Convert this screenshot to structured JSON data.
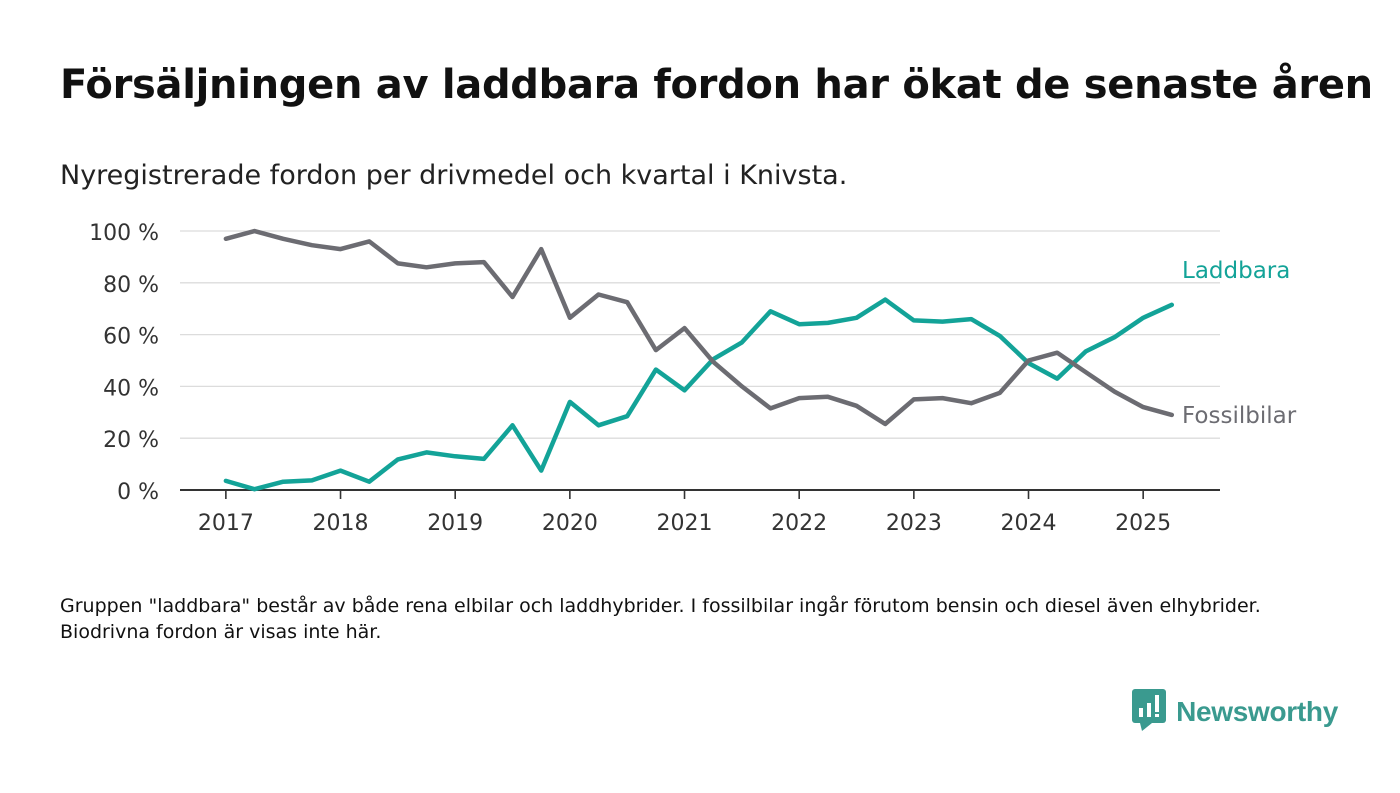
{
  "title": "Försäljningen av laddbara fordon har ökat de senaste åren",
  "subtitle": "Nyregistrerade fordon per drivmedel och kvartal i Knivsta.",
  "footnote": "Gruppen \"laddbara\" består av både rena elbilar och laddhybrider. I fossilbilar ingår förutom bensin och diesel även elhybrider. Biodrivna fordon är visas inte här.",
  "brand": {
    "name": "Newsworthy",
    "icon": "bar-chart-speech-bubble-icon",
    "color": "#3a9a8f"
  },
  "chart_data": {
    "type": "line",
    "ylim": [
      0,
      100
    ],
    "yticks": [
      0,
      20,
      40,
      60,
      80,
      100
    ],
    "ytick_labels": [
      "0 %",
      "20 %",
      "40 %",
      "60 %",
      "80 %",
      "100 %"
    ],
    "xlim": [
      2016.6,
      2025.67
    ],
    "xticks": [
      2017,
      2018,
      2019,
      2020,
      2021,
      2022,
      2023,
      2024,
      2025
    ],
    "xtick_labels": [
      "2017",
      "2018",
      "2019",
      "2020",
      "2021",
      "2022",
      "2023",
      "2024",
      "2025"
    ],
    "x": [
      2017.0,
      2017.25,
      2017.5,
      2017.75,
      2018.0,
      2018.25,
      2018.5,
      2018.75,
      2019.0,
      2019.25,
      2019.5,
      2019.75,
      2020.0,
      2020.25,
      2020.5,
      2020.75,
      2021.0,
      2021.25,
      2021.5,
      2021.75,
      2022.0,
      2022.25,
      2022.5,
      2022.75,
      2023.0,
      2023.25,
      2023.5,
      2023.75,
      2024.0,
      2024.25,
      2024.5,
      2024.75,
      2025.0,
      2025.25
    ],
    "grid": "horizontal",
    "series": [
      {
        "name": "Laddbara",
        "color": "#13a398",
        "values": [
          3.5,
          0.3,
          3.2,
          3.7,
          7.5,
          3.2,
          11.8,
          14.5,
          13.0,
          12.0,
          25.0,
          7.5,
          34.0,
          25.0,
          28.5,
          46.5,
          38.5,
          50.5,
          57.0,
          69.0,
          64.0,
          64.5,
          66.5,
          73.5,
          65.5,
          65.0,
          66.0,
          59.5,
          49.0,
          43.0,
          53.5,
          59.0,
          66.5,
          71.5
        ]
      },
      {
        "name": "Fossilbilar",
        "color": "#6c6c72",
        "values": [
          97.0,
          100.0,
          97.0,
          94.5,
          93.0,
          96.0,
          87.5,
          86.0,
          87.5,
          88.0,
          74.5,
          93.0,
          66.5,
          75.5,
          72.5,
          54.0,
          62.5,
          49.5,
          40.0,
          31.5,
          35.5,
          36.0,
          32.5,
          25.5,
          35.0,
          35.5,
          33.5,
          37.5,
          50.0,
          53.0,
          45.5,
          38.0,
          32.0,
          29.0
        ]
      }
    ]
  }
}
